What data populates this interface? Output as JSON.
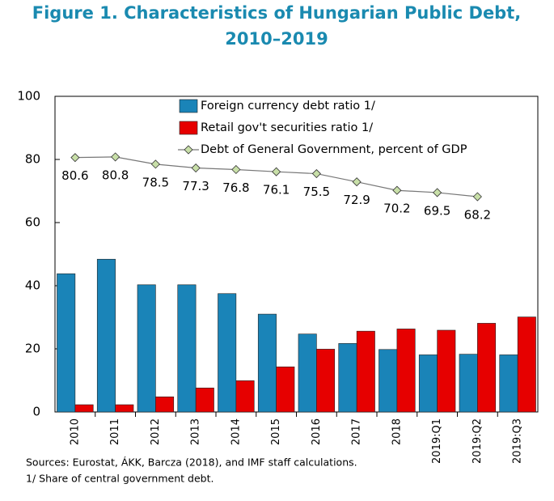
{
  "chart_data": {
    "type": "bar",
    "title": [
      "Figure 1. Characteristics of Hungarian Public Debt,",
      "2010–2019"
    ],
    "categories": [
      "2010",
      "2011",
      "2012",
      "2013",
      "2014",
      "2015",
      "2016",
      "2017",
      "2018",
      "2019:Q1",
      "2019:Q2",
      "2019:Q3"
    ],
    "series": [
      {
        "name": "Foreign currency debt ratio 1/",
        "color": "#1a84b8",
        "type": "bar",
        "values": [
          43.8,
          48.4,
          40.3,
          40.3,
          37.5,
          31.0,
          24.7,
          21.7,
          19.8,
          18.1,
          18.3,
          18.1
        ]
      },
      {
        "name": "Retail gov't securities ratio 1/",
        "color": "#e60000",
        "type": "bar",
        "values": [
          2.3,
          2.3,
          4.8,
          7.6,
          9.9,
          14.3,
          19.9,
          25.6,
          26.3,
          25.9,
          28.1,
          30.1
        ]
      },
      {
        "name": "Debt of General Government, percent of GDP",
        "color": "#c8dfa8",
        "type": "line",
        "values": [
          80.6,
          80.8,
          78.5,
          77.3,
          76.8,
          76.1,
          75.5,
          72.9,
          70.2,
          69.5,
          68.2,
          null
        ]
      }
    ],
    "ylim": [
      0,
      100
    ],
    "yticks": [
      0,
      20,
      40,
      60,
      80,
      100
    ],
    "sources": "Sources: Eurostat, ÁKK, Barcza (2018),  and IMF staff calculations.",
    "footnote": "1/ Share of central government debt."
  }
}
